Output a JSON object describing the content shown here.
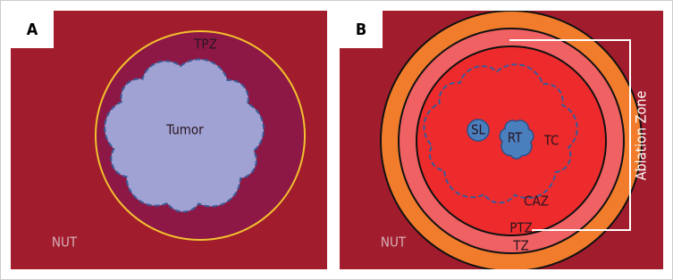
{
  "panels": [
    {
      "label": "A",
      "zone": "TPZ",
      "tumor": "Tumor",
      "background": "NUT"
    },
    {
      "label": "B",
      "satellite": "SL",
      "residual": "RT",
      "tumor_core": "TC",
      "caz": "CAZ",
      "ptz": "PTZ",
      "tz": "TZ",
      "background": "NUT",
      "bracket": "Ablation Zone"
    }
  ]
}
